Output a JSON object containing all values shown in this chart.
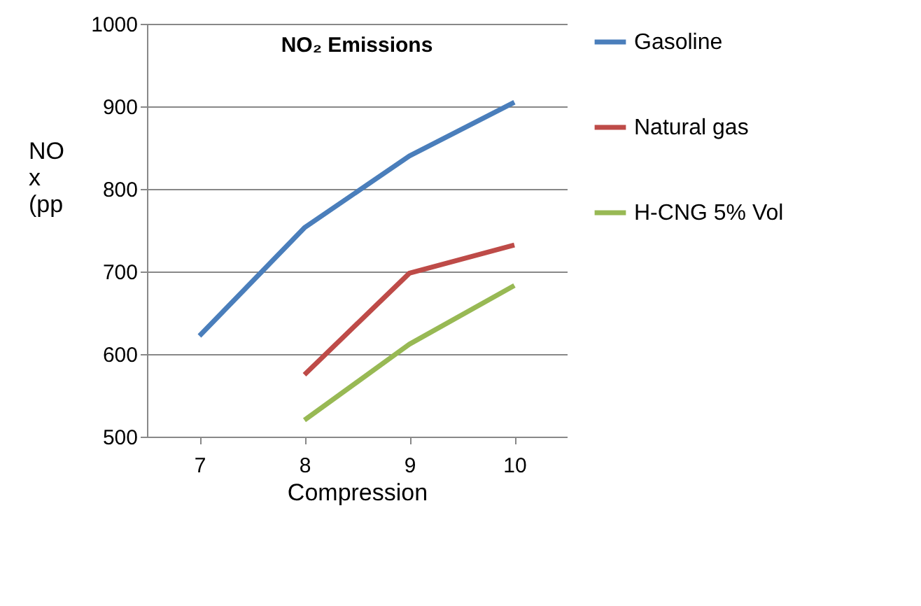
{
  "chart_data": {
    "type": "line",
    "title": "NO₂ Emissions",
    "xlabel": "Compression",
    "ylabel": "NO x (pp",
    "categories": [
      "7",
      "8",
      "9",
      "10"
    ],
    "series": [
      {
        "name": "Gasoline",
        "color": "#4a7ebb",
        "values": [
          622,
          753,
          840,
          905
        ]
      },
      {
        "name": "Natural gas",
        "color": "#be4b48",
        "values": [
          null,
          575,
          698,
          732
        ]
      },
      {
        "name": "H-CNG 5% Vol",
        "color": "#98b954",
        "values": [
          null,
          520,
          612,
          683
        ]
      }
    ],
    "ylim": [
      500,
      1000
    ],
    "yticks": [
      500,
      600,
      700,
      800,
      900,
      1000
    ],
    "grid": "y",
    "legend": "right",
    "marker": "none",
    "line_style": "solid"
  }
}
